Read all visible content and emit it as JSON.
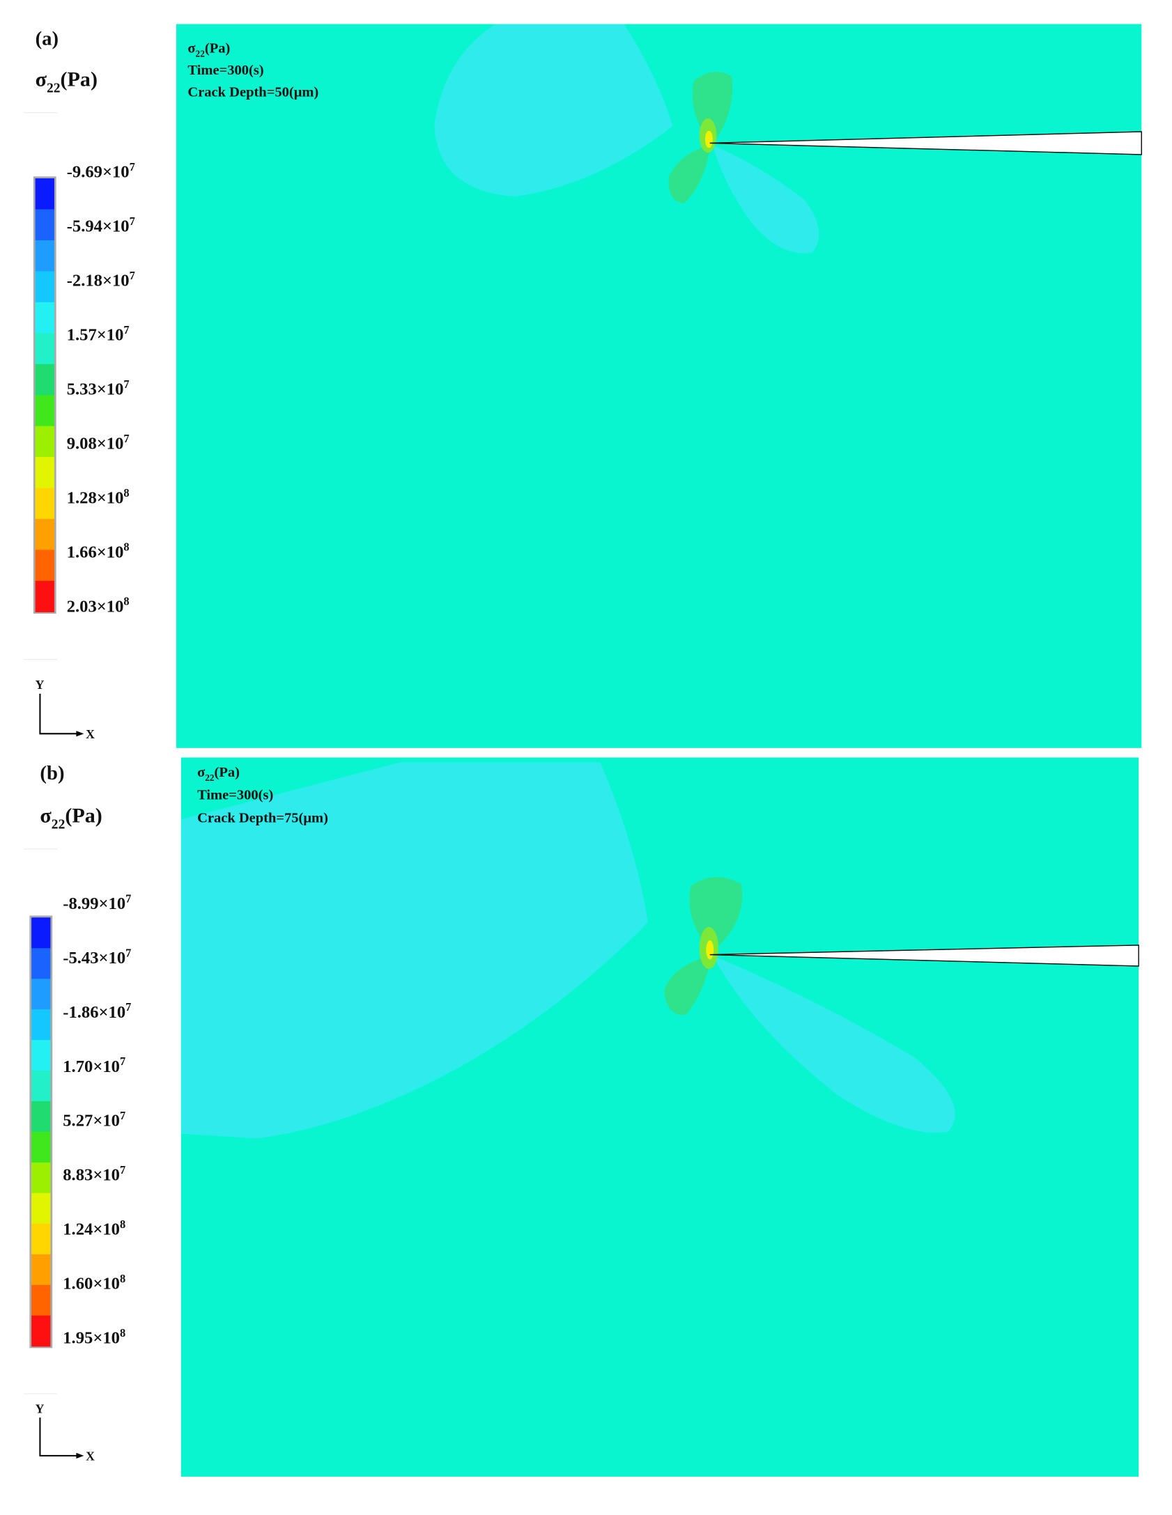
{
  "panels": [
    {
      "label": "(a)",
      "legend": {
        "title": {
          "symbol": "σ",
          "subscript": "22",
          "unit": "(Pa)"
        },
        "labels": [
          {
            "base": "-9.69×10",
            "exp": "7"
          },
          {
            "base": "-5.94×10",
            "exp": "7"
          },
          {
            "base": "-2.18×10",
            "exp": "7"
          },
          {
            "base": "1.57×10",
            "exp": "7"
          },
          {
            "base": "5.33×10",
            "exp": "7"
          },
          {
            "base": "9.08×10",
            "exp": "7"
          },
          {
            "base": "1.28×10",
            "exp": "8"
          },
          {
            "base": "1.66×10",
            "exp": "8"
          },
          {
            "base": "2.03×10",
            "exp": "8"
          }
        ]
      },
      "annotation": {
        "quantity": {
          "symbol": "σ",
          "subscript": "22",
          "unit": "(Pa)"
        },
        "time": "Time=300(s)",
        "depth": "Crack Depth=50(μm)"
      },
      "axes": {
        "y": "Y",
        "x": "X"
      }
    },
    {
      "label": "(b)",
      "legend": {
        "title": {
          "symbol": "σ",
          "subscript": "22",
          "unit": "(Pa)"
        },
        "labels": [
          {
            "base": "-8.99×10",
            "exp": "7"
          },
          {
            "base": "-5.43×10",
            "exp": "7"
          },
          {
            "base": "-1.86×10",
            "exp": "7"
          },
          {
            "base": "1.70×10",
            "exp": "7"
          },
          {
            "base": "5.27×10",
            "exp": "7"
          },
          {
            "base": "8.83×10",
            "exp": "7"
          },
          {
            "base": "1.24×10",
            "exp": "8"
          },
          {
            "base": "1.60×10",
            "exp": "8"
          },
          {
            "base": "1.95×10",
            "exp": "8"
          }
        ]
      },
      "annotation": {
        "quantity": {
          "symbol": "σ",
          "subscript": "22",
          "unit": "(Pa)"
        },
        "time": "Time=300(s)",
        "depth": "Crack Depth=75(μm)"
      },
      "axes": {
        "y": "Y",
        "x": "X"
      }
    }
  ]
}
